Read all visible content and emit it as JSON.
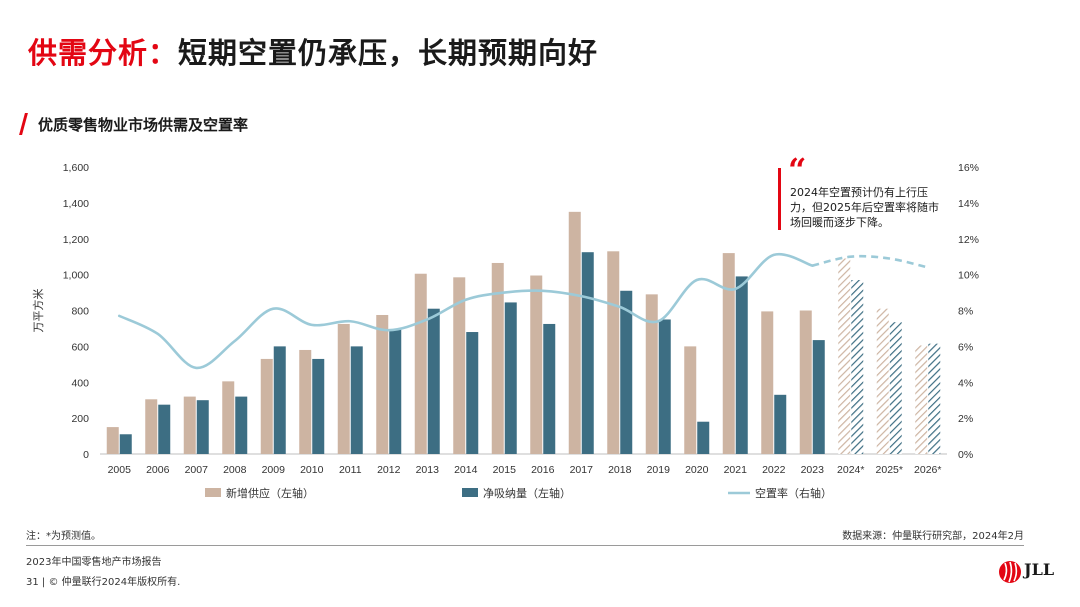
{
  "page": {
    "title_accent": "供需分析：",
    "title_rest": "短期空置仍承压，长期预期向好",
    "section_title": "优质零售物业市场供需及空置率",
    "quote_mark": "“",
    "quote_text": "2024年空置预计仍有上行压力，但2025年后空置率将随市场回暖而逐步下降。",
    "footnote": "注：*为预测值。",
    "source": "数据来源：仲量联行研究部，2024年2月",
    "report": "2023年中国零售地产市场报告",
    "copyright": "31 | © 仲量联行2024年版权所有.",
    "logo_text": "JLL"
  },
  "colors": {
    "supply": "#cdb4a2",
    "absorption": "#3d6e83",
    "vacancy": "#9ccad8",
    "brand_red": "#e30613"
  },
  "chart_data": {
    "type": "bar",
    "ylabel": "万平方米",
    "ylim": [
      0,
      1600
    ],
    "yticks": [
      "0",
      "200",
      "400",
      "600",
      "800",
      "1,000",
      "1,200",
      "1,400",
      "1,600"
    ],
    "y2lim": [
      0,
      16
    ],
    "y2ticks": [
      "0%",
      "2%",
      "4%",
      "6%",
      "8%",
      "10%",
      "12%",
      "14%",
      "16%"
    ],
    "categories": [
      "2005",
      "2006",
      "2007",
      "2008",
      "2009",
      "2010",
      "2011",
      "2012",
      "2013",
      "2014",
      "2015",
      "2016",
      "2017",
      "2018",
      "2019",
      "2020",
      "2021",
      "2022",
      "2023",
      "2024*",
      "2025*",
      "2026*"
    ],
    "forecast_start_index": 19,
    "series": [
      {
        "name": "新增供应（左轴）",
        "type": "bar",
        "axis": "left",
        "values": [
          150,
          305,
          320,
          405,
          530,
          580,
          725,
          775,
          1005,
          985,
          1065,
          995,
          1350,
          1130,
          890,
          600,
          1120,
          795,
          800,
          1090,
          810,
          605
        ]
      },
      {
        "name": "净吸纳量（左轴）",
        "type": "bar",
        "axis": "left",
        "values": [
          110,
          275,
          300,
          320,
          600,
          530,
          600,
          695,
          810,
          680,
          845,
          725,
          1125,
          910,
          750,
          180,
          990,
          330,
          635,
          970,
          735,
          615
        ]
      },
      {
        "name": "空置率（右轴）",
        "type": "line",
        "axis": "right",
        "values": [
          7.7,
          6.7,
          4.8,
          6.3,
          8.1,
          7.2,
          7.4,
          6.9,
          7.5,
          8.6,
          9.0,
          9.1,
          8.8,
          8.2,
          7.4,
          9.7,
          9.2,
          11.1,
          10.5,
          11.0,
          10.9,
          10.4
        ]
      }
    ],
    "legend_position": "bottom"
  }
}
